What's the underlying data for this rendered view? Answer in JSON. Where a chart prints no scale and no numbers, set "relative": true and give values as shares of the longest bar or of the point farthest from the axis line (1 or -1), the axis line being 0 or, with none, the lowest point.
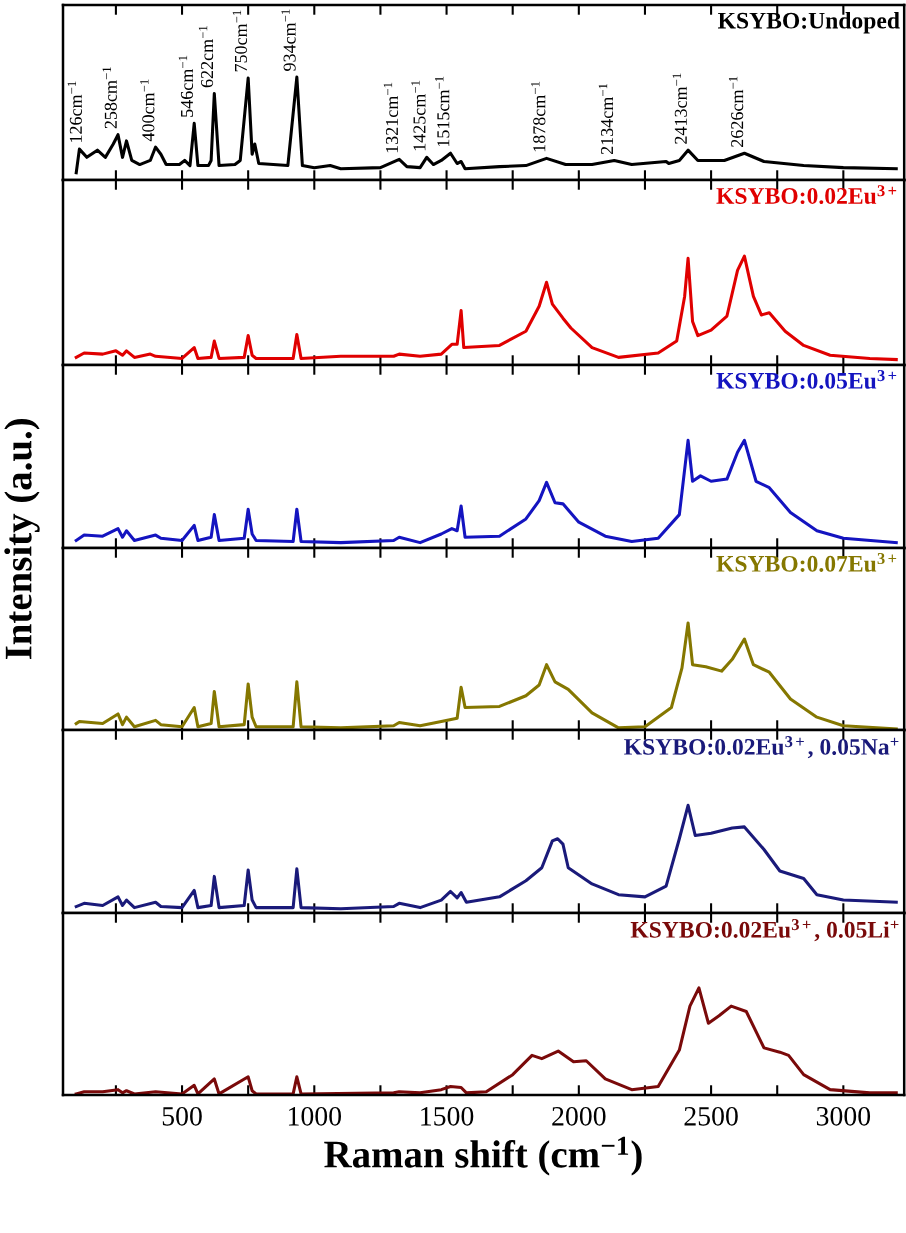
{
  "chart_data": [
    {
      "type": "line",
      "relative": true,
      "tick_labels": false,
      "xlim": [
        50,
        3230
      ],
      "xticks": [
        {
          "value": 250,
          "label": null
        },
        500,
        {
          "value": 750,
          "label": null
        },
        1000,
        {
          "value": 1250,
          "label": null
        },
        1500,
        {
          "value": 1750,
          "label": null
        },
        2000,
        {
          "value": 2250,
          "label": null
        },
        2500,
        {
          "value": 2750,
          "label": null
        },
        3000
      ],
      "series": [
        {
          "name": "KSYBO:Undoped",
          "color": "#000000",
          "x": [
            100,
            112,
            140,
            180,
            210,
            240,
            258,
            275,
            290,
            310,
            340,
            380,
            400,
            420,
            440,
            490,
            510,
            530,
            546,
            560,
            600,
            610,
            622,
            640,
            700,
            720,
            750,
            765,
            775,
            790,
            900,
            934,
            955,
            1000,
            1060,
            1100,
            1250,
            1321,
            1350,
            1400,
            1425,
            1450,
            1480,
            1515,
            1540,
            1555,
            1570,
            1700,
            1800,
            1878,
            1950,
            2050,
            2134,
            2200,
            2330,
            2340,
            2380,
            2413,
            2450,
            2550,
            2626,
            2700,
            2850,
            3000,
            3200
          ],
          "values": [
            0.07,
            0.3,
            0.22,
            0.29,
            0.22,
            0.35,
            0.44,
            0.22,
            0.38,
            0.19,
            0.15,
            0.19,
            0.32,
            0.25,
            0.15,
            0.15,
            0.19,
            0.14,
            0.55,
            0.14,
            0.14,
            0.19,
            0.84,
            0.14,
            0.15,
            0.19,
            0.99,
            0.25,
            0.35,
            0.16,
            0.14,
            1.0,
            0.14,
            0.12,
            0.14,
            0.11,
            0.12,
            0.2,
            0.13,
            0.12,
            0.22,
            0.15,
            0.19,
            0.26,
            0.16,
            0.18,
            0.11,
            0.13,
            0.14,
            0.21,
            0.15,
            0.15,
            0.19,
            0.15,
            0.18,
            0.16,
            0.19,
            0.29,
            0.19,
            0.19,
            0.26,
            0.18,
            0.14,
            0.12,
            0.11
          ]
        }
      ],
      "annotations": [
        {
          "text": "126cm$^{−1}$",
          "x": 126,
          "y": 0.3
        },
        {
          "text": "258cm$^{−1}$",
          "x": 258,
          "y": 0.44
        },
        {
          "text": "400cm$^{−1}$",
          "x": 400,
          "y": 0.32
        },
        {
          "text": "546cm$^{−1}$",
          "x": 546,
          "y": 0.55
        },
        {
          "text": "622cm$^{−1}$",
          "x": 622,
          "y": 0.84
        },
        {
          "text": "750cm$^{−1}$",
          "x": 750,
          "y": 0.99
        },
        {
          "text": "934cm$^{−1}$",
          "x": 934,
          "y": 1.0
        },
        {
          "text": "1321cm$^{−1}$",
          "x": 1321,
          "y": 0.2
        },
        {
          "text": "1425cm$^{−1}$",
          "x": 1425,
          "y": 0.22
        },
        {
          "text": "1515cm$^{−1}$",
          "x": 1515,
          "y": 0.26
        },
        {
          "text": "1878cm$^{−1}$",
          "x": 1878,
          "y": 0.21
        },
        {
          "text": "2134cm$^{−1}$",
          "x": 2134,
          "y": 0.19
        },
        {
          "text": "2413cm$^{−1}$",
          "x": 2413,
          "y": 0.29
        },
        {
          "text": "2626cm$^{−1}$",
          "x": 2626,
          "y": 0.26
        }
      ]
    },
    {
      "type": "line",
      "relative": true,
      "tick_labels": false,
      "xlim": [
        50,
        3230
      ],
      "xticks": [
        {
          "value": 250,
          "label": null
        },
        500,
        {
          "value": 750,
          "label": null
        },
        1000,
        {
          "value": 1250,
          "label": null
        },
        1500,
        {
          "value": 1750,
          "label": null
        },
        2000,
        {
          "value": 2250,
          "label": null
        },
        2500,
        {
          "value": 2750,
          "label": null
        },
        3000
      ],
      "series": [
        {
          "name": "KSYBO:0.02Eu$^{3+}$",
          "color": "#e00000",
          "x": [
            100,
            130,
            200,
            250,
            275,
            290,
            320,
            380,
            400,
            500,
            546,
            560,
            610,
            622,
            640,
            735,
            750,
            765,
            780,
            920,
            934,
            950,
            1100,
            1300,
            1321,
            1400,
            1480,
            1520,
            1540,
            1555,
            1565,
            1700,
            1800,
            1850,
            1878,
            1900,
            1940,
            1970,
            2050,
            2150,
            2300,
            2370,
            2400,
            2413,
            2430,
            2450,
            2500,
            2560,
            2600,
            2626,
            2660,
            2690,
            2720,
            2780,
            2850,
            2950,
            3100,
            3200
          ],
          "values": [
            0.07,
            0.11,
            0.1,
            0.13,
            0.09,
            0.13,
            0.07,
            0.1,
            0.08,
            0.06,
            0.16,
            0.06,
            0.07,
            0.22,
            0.06,
            0.07,
            0.27,
            0.09,
            0.06,
            0.06,
            0.28,
            0.06,
            0.08,
            0.08,
            0.1,
            0.08,
            0.1,
            0.19,
            0.19,
            0.5,
            0.16,
            0.18,
            0.31,
            0.54,
            0.76,
            0.56,
            0.43,
            0.34,
            0.16,
            0.07,
            0.11,
            0.22,
            0.63,
            0.98,
            0.4,
            0.27,
            0.32,
            0.45,
            0.87,
            1.0,
            0.63,
            0.46,
            0.48,
            0.31,
            0.18,
            0.09,
            0.06,
            0.05
          ]
        }
      ]
    },
    {
      "type": "line",
      "relative": true,
      "tick_labels": false,
      "ylabel": "Intensity (a.u.)",
      "xlim": [
        50,
        3230
      ],
      "xticks": [
        {
          "value": 250,
          "label": null
        },
        500,
        {
          "value": 750,
          "label": null
        },
        1000,
        {
          "value": 1250,
          "label": null
        },
        1500,
        {
          "value": 1750,
          "label": null
        },
        2000,
        {
          "value": 2250,
          "label": null
        },
        2500,
        {
          "value": 2750,
          "label": null
        },
        3000
      ],
      "series": [
        {
          "name": "KSYBO:0.05Eu$^{3+}$",
          "color": "#1414c0",
          "x": [
            100,
            130,
            200,
            258,
            275,
            290,
            320,
            400,
            420,
            500,
            546,
            560,
            610,
            622,
            640,
            735,
            750,
            765,
            780,
            920,
            934,
            950,
            1100,
            1300,
            1321,
            1400,
            1480,
            1520,
            1540,
            1555,
            1570,
            1700,
            1800,
            1850,
            1878,
            1910,
            1940,
            2000,
            2100,
            2200,
            2300,
            2380,
            2413,
            2430,
            2460,
            2500,
            2560,
            2600,
            2626,
            2670,
            2720,
            2800,
            2900,
            3000,
            3200
          ],
          "values": [
            0.07,
            0.12,
            0.11,
            0.18,
            0.1,
            0.16,
            0.07,
            0.12,
            0.09,
            0.07,
            0.21,
            0.07,
            0.1,
            0.31,
            0.07,
            0.09,
            0.36,
            0.13,
            0.07,
            0.06,
            0.36,
            0.06,
            0.05,
            0.07,
            0.1,
            0.05,
            0.13,
            0.18,
            0.16,
            0.39,
            0.1,
            0.11,
            0.27,
            0.44,
            0.61,
            0.42,
            0.41,
            0.24,
            0.11,
            0.06,
            0.09,
            0.31,
            1.0,
            0.62,
            0.67,
            0.62,
            0.64,
            0.89,
            1.0,
            0.62,
            0.56,
            0.33,
            0.16,
            0.09,
            0.05
          ]
        }
      ]
    },
    {
      "type": "line",
      "relative": true,
      "tick_labels": false,
      "xlim": [
        50,
        3230
      ],
      "xticks": [
        {
          "value": 250,
          "label": null
        },
        500,
        {
          "value": 750,
          "label": null
        },
        1000,
        {
          "value": 1250,
          "label": null
        },
        1500,
        {
          "value": 1750,
          "label": null
        },
        2000,
        {
          "value": 2250,
          "label": null
        },
        2500,
        {
          "value": 2750,
          "label": null
        },
        3000
      ],
      "series": [
        {
          "name": "KSYBO:0.07Eu$^{3+}$",
          "color": "#857700",
          "x": [
            100,
            112,
            200,
            258,
            275,
            290,
            320,
            400,
            420,
            500,
            546,
            560,
            610,
            622,
            640,
            735,
            750,
            765,
            780,
            920,
            934,
            950,
            1100,
            1300,
            1321,
            1400,
            1480,
            1540,
            1555,
            1570,
            1700,
            1800,
            1850,
            1878,
            1910,
            1960,
            2050,
            2150,
            2250,
            2350,
            2390,
            2413,
            2430,
            2480,
            2540,
            2580,
            2626,
            2660,
            2720,
            2800,
            2900,
            3000,
            3200
          ],
          "values": [
            0.06,
            0.08,
            0.06,
            0.15,
            0.05,
            0.12,
            0.03,
            0.09,
            0.05,
            0.03,
            0.21,
            0.03,
            0.06,
            0.36,
            0.03,
            0.05,
            0.43,
            0.12,
            0.03,
            0.03,
            0.45,
            0.03,
            0.02,
            0.04,
            0.07,
            0.04,
            0.08,
            0.11,
            0.4,
            0.21,
            0.22,
            0.32,
            0.42,
            0.61,
            0.45,
            0.38,
            0.16,
            0.02,
            0.03,
            0.21,
            0.58,
            1.0,
            0.61,
            0.59,
            0.55,
            0.66,
            0.85,
            0.61,
            0.54,
            0.29,
            0.12,
            0.04,
            0.01
          ]
        }
      ]
    },
    {
      "type": "line",
      "relative": true,
      "tick_labels": false,
      "xlim": [
        50,
        3230
      ],
      "xticks": [
        {
          "value": 250,
          "label": null
        },
        500,
        {
          "value": 750,
          "label": null
        },
        1000,
        {
          "value": 1250,
          "label": null
        },
        1500,
        {
          "value": 1750,
          "label": null
        },
        2000,
        {
          "value": 2250,
          "label": null
        },
        2500,
        {
          "value": 2750,
          "label": null
        },
        3000
      ],
      "series": [
        {
          "name": "KSYBO:0.02Eu$^{3+}$, 0.05Na$^{+}$",
          "color": "#1a1a7a",
          "x": [
            100,
            130,
            200,
            258,
            275,
            290,
            320,
            400,
            420,
            500,
            546,
            560,
            610,
            622,
            640,
            735,
            750,
            765,
            780,
            920,
            934,
            950,
            1100,
            1300,
            1321,
            1400,
            1480,
            1515,
            1540,
            1555,
            1575,
            1700,
            1800,
            1860,
            1900,
            1920,
            1940,
            1960,
            2050,
            2150,
            2250,
            2330,
            2380,
            2413,
            2440,
            2500,
            2580,
            2626,
            2700,
            2760,
            2850,
            2900,
            3000,
            3200
          ],
          "values": [
            0.06,
            0.09,
            0.07,
            0.15,
            0.07,
            0.12,
            0.05,
            0.1,
            0.06,
            0.05,
            0.21,
            0.05,
            0.07,
            0.34,
            0.05,
            0.07,
            0.4,
            0.12,
            0.05,
            0.05,
            0.41,
            0.05,
            0.04,
            0.06,
            0.09,
            0.05,
            0.12,
            0.2,
            0.14,
            0.19,
            0.1,
            0.15,
            0.3,
            0.42,
            0.67,
            0.69,
            0.64,
            0.42,
            0.27,
            0.17,
            0.15,
            0.25,
            0.69,
            1.0,
            0.72,
            0.74,
            0.79,
            0.8,
            0.59,
            0.39,
            0.32,
            0.17,
            0.12,
            0.1
          ]
        }
      ]
    },
    {
      "type": "line",
      "relative": true,
      "tick_labels": "x",
      "xlabel": "Raman shift (cm$^{−1}$)",
      "xlim": [
        50,
        3230
      ],
      "xticks": [
        {
          "value": 250,
          "label": null
        },
        500,
        {
          "value": 750,
          "label": null
        },
        1000,
        {
          "value": 1250,
          "label": null
        },
        1500,
        {
          "value": 1750,
          "label": null
        },
        2000,
        {
          "value": 2250,
          "label": null
        },
        2500,
        {
          "value": 2750,
          "label": null
        },
        3000
      ],
      "series": [
        {
          "name": "KSYBO:0.02Eu$^{3+}$, 0.05Li$^{+}$",
          "color": "#7a0a0a",
          "x": [
            100,
            130,
            200,
            258,
            275,
            290,
            320,
            400,
            500,
            546,
            560,
            622,
            640,
            750,
            765,
            780,
            920,
            934,
            950,
            1300,
            1321,
            1400,
            1480,
            1515,
            1555,
            1575,
            1650,
            1750,
            1823,
            1860,
            1922,
            1980,
            2028,
            2100,
            2200,
            2300,
            2380,
            2420,
            2454,
            2490,
            2530,
            2576,
            2633,
            2700,
            2760,
            2793,
            2850,
            2950,
            3100,
            3200
          ],
          "values": [
            0.01,
            0.03,
            0.03,
            0.05,
            0.02,
            0.04,
            0.01,
            0.03,
            0.01,
            0.09,
            0.01,
            0.15,
            0.01,
            0.17,
            0.04,
            0.01,
            0.01,
            0.17,
            0.01,
            0.02,
            0.03,
            0.02,
            0.05,
            0.08,
            0.07,
            0.02,
            0.03,
            0.19,
            0.37,
            0.34,
            0.41,
            0.31,
            0.32,
            0.15,
            0.05,
            0.08,
            0.42,
            0.83,
            1.0,
            0.67,
            0.74,
            0.83,
            0.78,
            0.44,
            0.4,
            0.37,
            0.19,
            0.05,
            0.02,
            0.02
          ]
        }
      ]
    }
  ]
}
